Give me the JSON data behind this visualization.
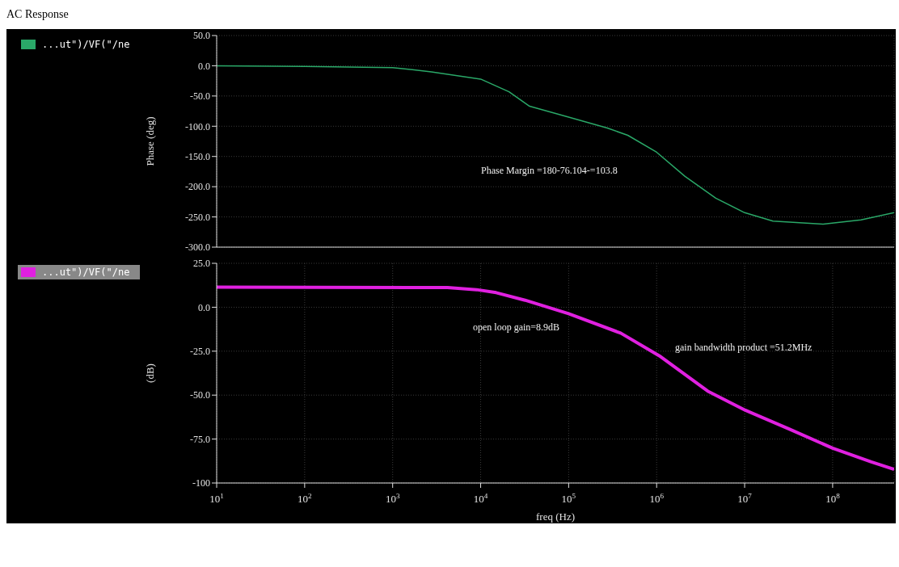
{
  "chart_data": [
    {
      "type": "line",
      "ylabel": "Phase (deg)",
      "xlim": [
        10,
        500000000
      ],
      "log": "x",
      "grid": true,
      "legend": "left",
      "tick_labels": "y",
      "xticks": [
        {
          "value": 10,
          "label": null
        },
        {
          "value": 100,
          "label": null
        },
        {
          "value": 1000,
          "label": null
        },
        {
          "value": 10000,
          "label": null
        },
        {
          "value": 100000,
          "label": null
        },
        {
          "value": 1000000,
          "label": null
        },
        {
          "value": 10000000,
          "label": null
        },
        {
          "value": 100000000,
          "label": null
        }
      ],
      "ylim": [
        -300,
        50
      ],
      "yticks": [
        {
          "value": 50,
          "label": "50.0"
        },
        {
          "value": 0,
          "label": "0.0"
        },
        {
          "value": -50,
          "label": "-50.0"
        },
        {
          "value": -100,
          "label": "-100.0"
        },
        {
          "value": -150,
          "label": "-150.0"
        },
        {
          "value": -200,
          "label": "-200.0"
        },
        {
          "value": -250,
          "label": "-250.0"
        },
        {
          "value": -300,
          "label": "-300.0"
        }
      ],
      "series": [
        {
          "name": "...ut\")/VF(\"/ne",
          "color": "#2aa868",
          "x": [
            10,
            100,
            1000,
            2750,
            10000,
            21000,
            36000,
            100000,
            275000,
            470000,
            1000000,
            2100000,
            4700000,
            10000000,
            21000000,
            78000000,
            210000000,
            500000000
          ],
          "values": [
            0,
            -1,
            -3,
            -10,
            -22,
            -43,
            -67,
            -85,
            -103,
            -115,
            -143,
            -183,
            -219,
            -243,
            -257,
            -262,
            -255,
            -243
          ]
        }
      ],
      "annotations": [
        "AC Response",
        "Phase Margin =180-76.104-=103.8"
      ]
    },
    {
      "type": "line",
      "ylabel": "(dB)",
      "xlabel": "freq (Hz)",
      "xlim": [
        10,
        500000000
      ],
      "log": "x",
      "grid": true,
      "legend": "left",
      "xticks": [
        {
          "value": 10,
          "label": "10$^{1}$"
        },
        {
          "value": 100,
          "label": "10$^{2}$"
        },
        {
          "value": 1000,
          "label": "10$^{3}$"
        },
        {
          "value": 10000,
          "label": "10$^{4}$"
        },
        {
          "value": 100000,
          "label": "10$^{5}$"
        },
        {
          "value": 1000000,
          "label": "10$^{6}$"
        },
        {
          "value": 10000000,
          "label": "10$^{7}$"
        },
        {
          "value": 100000000,
          "label": "10$^{8}$"
        }
      ],
      "ylim": [
        -100,
        25
      ],
      "yticks": [
        {
          "value": 25,
          "label": "25.0"
        },
        {
          "value": 0,
          "label": "0.0"
        },
        {
          "value": -25,
          "label": "-25.0"
        },
        {
          "value": -50,
          "label": "-50.0"
        },
        {
          "value": -75,
          "label": "-75.0"
        },
        -100
      ],
      "series": [
        {
          "name": "...ut\")/VF(\"/ne",
          "color": "#e020e0",
          "x": [
            10,
            4200,
            9000,
            15000,
            32000,
            100000,
            390000,
            1070000,
            3800000,
            10200000,
            32000000,
            100000000,
            275000000,
            500000000
          ],
          "values": [
            11.5,
            11.2,
            10,
            8.3,
            4,
            -3.7,
            -14.7,
            -27.6,
            -47.7,
            -58.6,
            -69.3,
            -80.2,
            -88,
            -92.2
          ]
        }
      ],
      "annotations": [
        "open loop gain=8.9dB",
        "gain bandwidth product =51.2MHz"
      ]
    }
  ]
}
